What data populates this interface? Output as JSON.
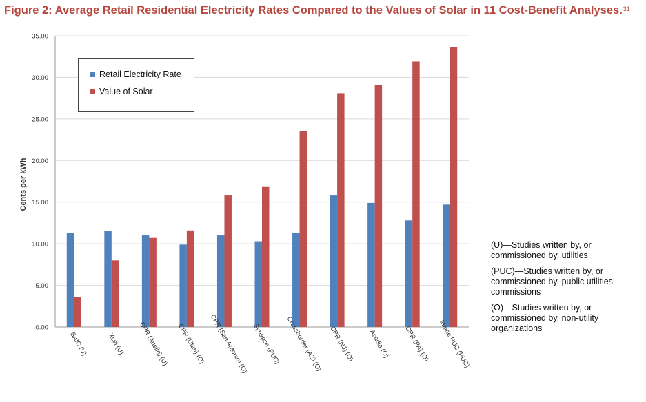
{
  "chart_data": {
    "type": "bar",
    "title": "Figure 2: Average Retail Residential Electricity Rates Compared to the Values of Solar in 11 Cost-Benefit Analyses.",
    "title_superscript": "31",
    "ylabel": "Cents per kWh",
    "ylim": [
      0,
      35
    ],
    "yticks": [
      "0.00",
      "5.00",
      "10.00",
      "15.00",
      "20.00",
      "25.00",
      "30.00",
      "35.00"
    ],
    "grid": true,
    "legend_position": "top-left",
    "categories": [
      "SAIC (U)",
      "Xcel (U)",
      "CPR (Austin) (U)",
      "CPR (Utah) (O)",
      "CPR (San Antonio) (O)",
      "Synapse (PUC)",
      "Crossborder (AZ) (O)",
      "CPR (NJ) (O)",
      "Acadia (O)",
      "CPR (PA) (O)",
      "Maine PUC (PUC)"
    ],
    "series": [
      {
        "name": "Retail Electricity Rate",
        "color": "#4f81bd",
        "values": [
          11.3,
          11.5,
          11.0,
          9.9,
          11.0,
          10.3,
          11.3,
          15.8,
          14.9,
          12.8,
          14.7
        ]
      },
      {
        "name": "Value of Solar",
        "color": "#c0504d",
        "values": [
          3.6,
          8.0,
          10.7,
          11.6,
          15.8,
          16.9,
          23.5,
          28.1,
          29.1,
          31.9,
          33.6
        ]
      }
    ]
  },
  "notes": [
    "(U)—Studies written by, or commissioned by, utilities",
    "(PUC)—Studies written by, or commissioned by, public utilities commissions",
    "(O)—Studies written by, or commissioned by, non-utility organizations"
  ]
}
